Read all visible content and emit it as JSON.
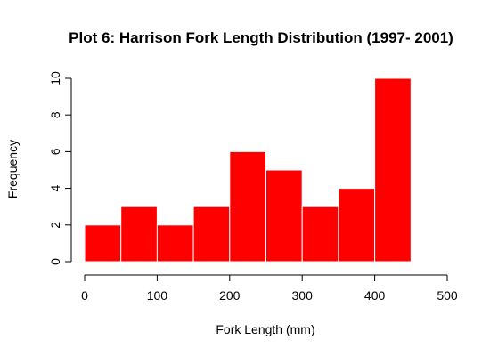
{
  "chart_data": {
    "type": "bar",
    "title": "Plot 6: Harrison Fork Length Distribution (1997- 2001)",
    "xlabel": "Fork Length (mm)",
    "ylabel": "Frequency",
    "bins": [
      {
        "start": 0,
        "end": 50,
        "count": 2
      },
      {
        "start": 50,
        "end": 100,
        "count": 3
      },
      {
        "start": 100,
        "end": 150,
        "count": 2
      },
      {
        "start": 150,
        "end": 200,
        "count": 3
      },
      {
        "start": 200,
        "end": 250,
        "count": 6
      },
      {
        "start": 250,
        "end": 300,
        "count": 5
      },
      {
        "start": 300,
        "end": 350,
        "count": 3
      },
      {
        "start": 350,
        "end": 400,
        "count": 4
      },
      {
        "start": 400,
        "end": 450,
        "count": 10
      }
    ],
    "xlim": [
      0,
      500
    ],
    "ylim": [
      0,
      10
    ],
    "xticks": [
      "0",
      "100",
      "200",
      "300",
      "400",
      "500"
    ],
    "yticks": [
      "0",
      "2",
      "4",
      "6",
      "8",
      "10"
    ],
    "grid": false,
    "bar_color": "#ff0000"
  }
}
